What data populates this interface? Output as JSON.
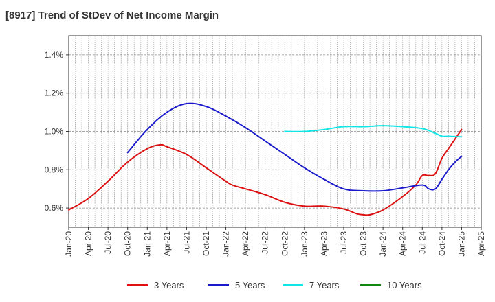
{
  "chart_data": {
    "type": "line",
    "title": "[8917]  Trend of StDev of Net Income Margin",
    "xlabel": "",
    "ylabel": "",
    "x_ticks": [
      "Jan-20",
      "Apr-20",
      "Jul-20",
      "Oct-20",
      "Jan-21",
      "Apr-21",
      "Jul-21",
      "Oct-21",
      "Jan-22",
      "Apr-22",
      "Jul-22",
      "Oct-22",
      "Jan-23",
      "Apr-23",
      "Jul-23",
      "Oct-23",
      "Jan-24",
      "Apr-24",
      "Jul-24",
      "Oct-24",
      "Jan-25",
      "Apr-25"
    ],
    "y_ticks": [
      "0.6%",
      "0.8%",
      "1.0%",
      "1.2%",
      "1.4%"
    ],
    "y_tick_values": [
      0.6,
      0.8,
      1.0,
      1.2,
      1.4
    ],
    "ylim": [
      0.5,
      1.5
    ],
    "grid": true,
    "legend_position": "bottom",
    "series": [
      {
        "name": "3 Years",
        "color": "#dd1111",
        "x": [
          "2020-01",
          "2020-04",
          "2020-07",
          "2020-10",
          "2021-01",
          "2021-03",
          "2021-04",
          "2021-07",
          "2021-10",
          "2022-01",
          "2022-02",
          "2022-04",
          "2022-07",
          "2022-10",
          "2023-01",
          "2023-04",
          "2023-07",
          "2023-09",
          "2023-10",
          "2023-11",
          "2024-01",
          "2024-04",
          "2024-06",
          "2024-07",
          "2024-08",
          "2024-09",
          "2024-10",
          "2024-11",
          "2024-12",
          "2025-01"
        ],
        "values": [
          0.59,
          0.65,
          0.74,
          0.84,
          0.91,
          0.93,
          0.92,
          0.88,
          0.81,
          0.74,
          0.72,
          0.7,
          0.67,
          0.63,
          0.61,
          0.61,
          0.595,
          0.57,
          0.565,
          0.565,
          0.59,
          0.66,
          0.72,
          0.77,
          0.77,
          0.78,
          0.86,
          0.91,
          0.96,
          1.01
        ]
      },
      {
        "name": "5 Years",
        "color": "#1a1acc",
        "x": [
          "2020-10",
          "2021-01",
          "2021-04",
          "2021-07",
          "2021-10",
          "2022-01",
          "2022-04",
          "2022-07",
          "2022-10",
          "2023-01",
          "2023-04",
          "2023-07",
          "2023-10",
          "2024-01",
          "2024-04",
          "2024-07",
          "2024-08",
          "2024-09",
          "2024-10",
          "2024-11",
          "2024-12",
          "2025-01"
        ],
        "values": [
          0.89,
          1.01,
          1.1,
          1.145,
          1.13,
          1.08,
          1.02,
          0.95,
          0.88,
          0.81,
          0.75,
          0.7,
          0.69,
          0.69,
          0.705,
          0.72,
          0.7,
          0.7,
          0.75,
          0.8,
          0.84,
          0.87
        ]
      },
      {
        "name": "7 Years",
        "color": "#11e5e5",
        "x": [
          "2022-10",
          "2023-01",
          "2023-04",
          "2023-07",
          "2023-10",
          "2024-01",
          "2024-04",
          "2024-07",
          "2024-09",
          "2024-10",
          "2024-11",
          "2024-12",
          "2025-01"
        ],
        "values": [
          1.0,
          1.0,
          1.01,
          1.025,
          1.025,
          1.03,
          1.025,
          1.015,
          0.99,
          0.975,
          0.975,
          0.973,
          0.972
        ]
      },
      {
        "name": "10 Years",
        "color": "#118811",
        "x": [],
        "values": []
      }
    ]
  }
}
